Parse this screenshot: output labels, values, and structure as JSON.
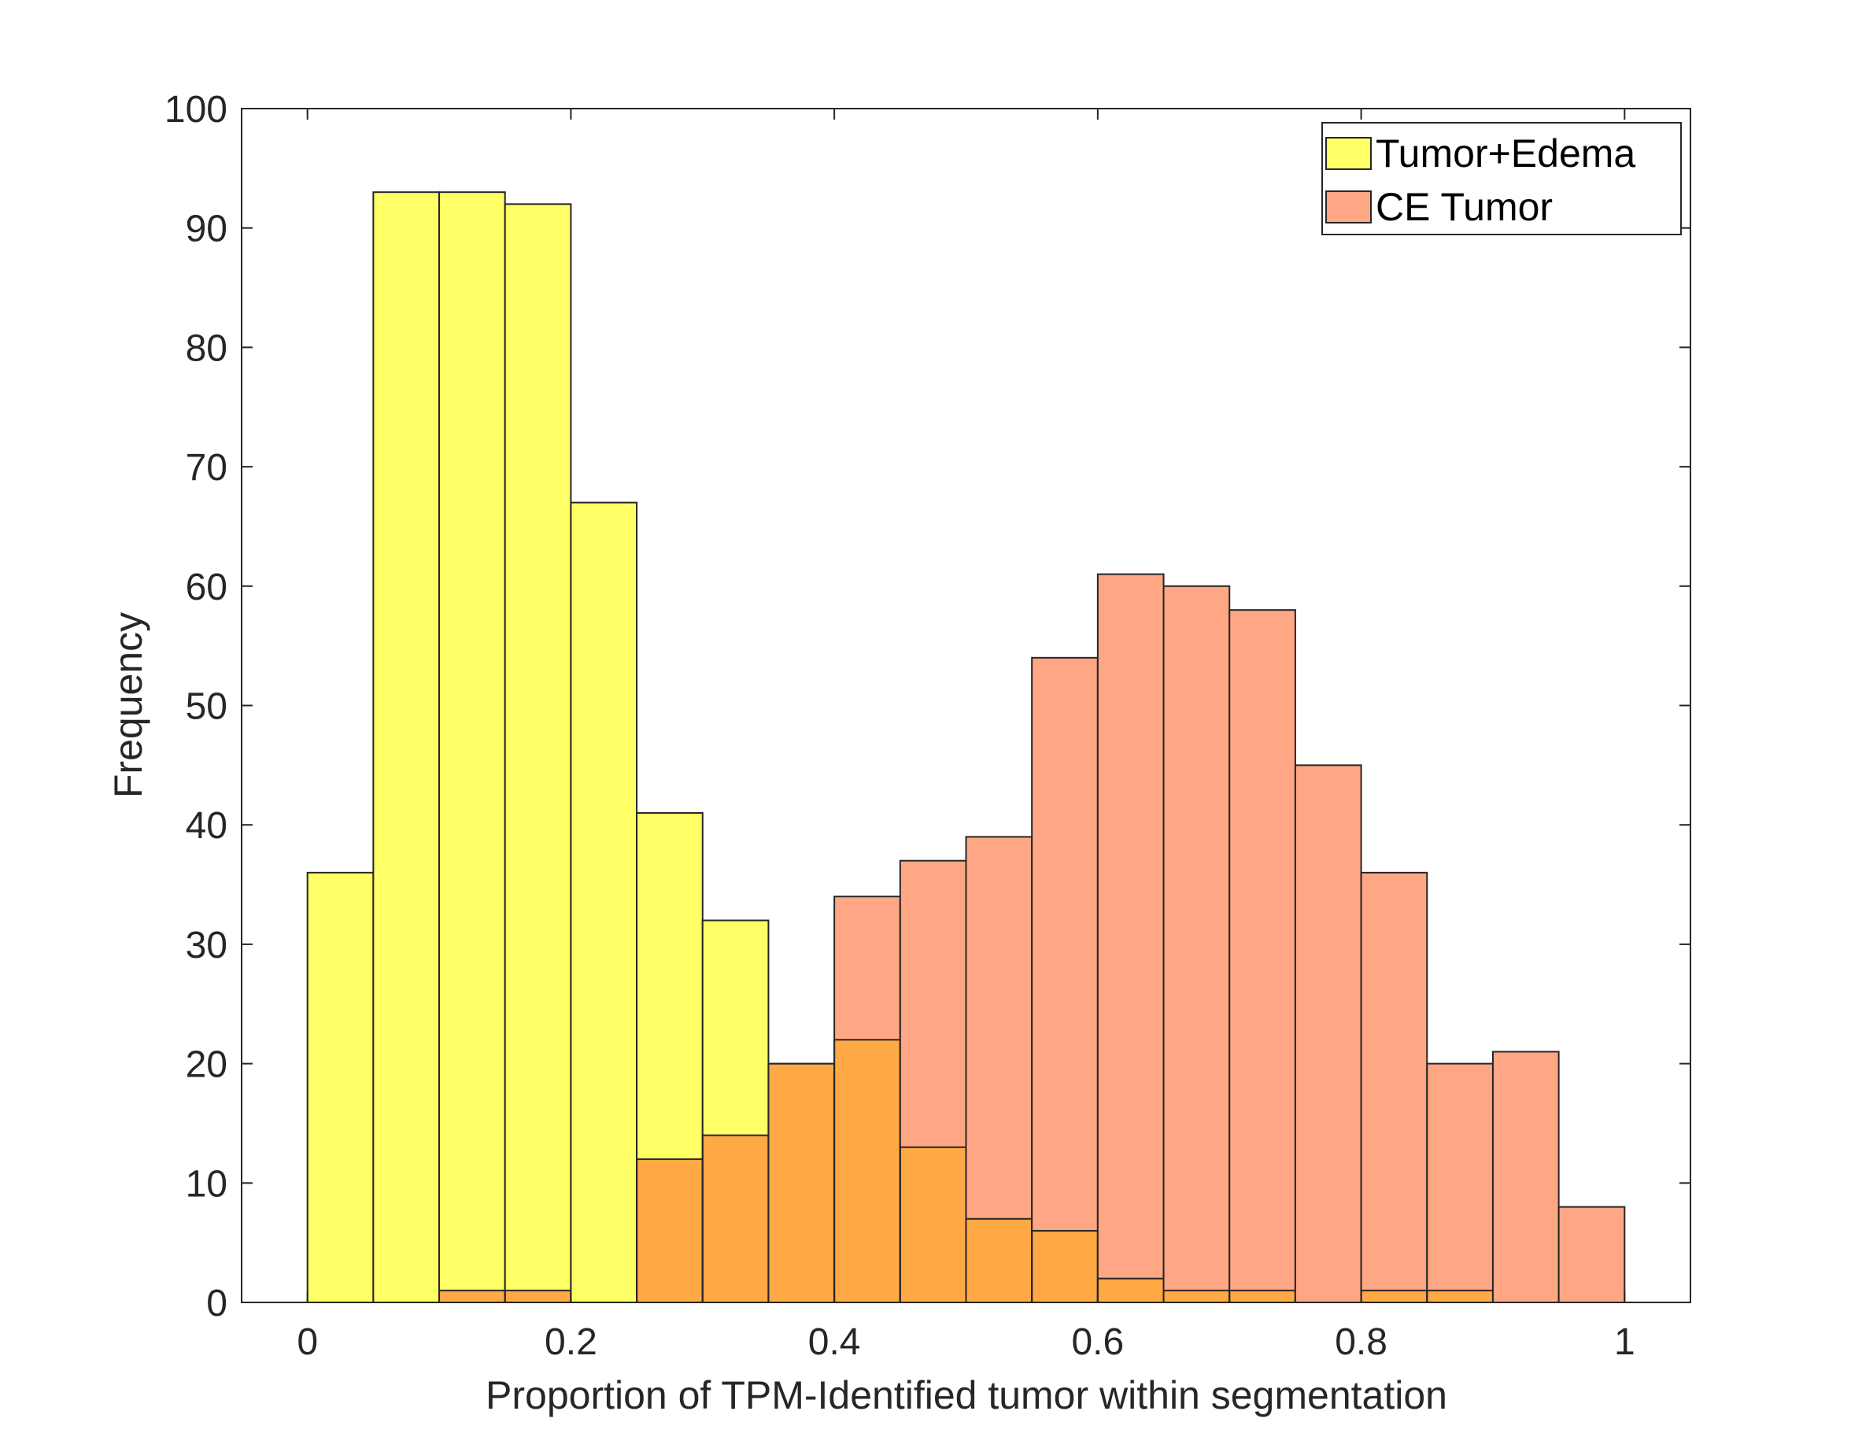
{
  "chart_data": {
    "type": "histogram",
    "title": "",
    "xlabel": "Proportion of TPM-Identified tumor within segmentation",
    "ylabel": "Frequency",
    "xlim": [
      -0.05,
      1.05
    ],
    "ylim": [
      0,
      100
    ],
    "bin_width": 0.05,
    "bin_edges": [
      0,
      0.05,
      0.1,
      0.15,
      0.2,
      0.25,
      0.3,
      0.35,
      0.4,
      0.45,
      0.5,
      0.55,
      0.6,
      0.65,
      0.7,
      0.75,
      0.8,
      0.85,
      0.9,
      0.95,
      1.0
    ],
    "x_ticks": [
      0,
      0.2,
      0.4,
      0.6,
      0.8,
      1
    ],
    "x_tick_labels": [
      "0",
      "0.2",
      "0.4",
      "0.6",
      "0.8",
      "1"
    ],
    "y_ticks": [
      0,
      10,
      20,
      30,
      40,
      50,
      60,
      70,
      80,
      90,
      100
    ],
    "y_tick_labels": [
      "0",
      "10",
      "20",
      "30",
      "40",
      "50",
      "60",
      "70",
      "80",
      "90",
      "100"
    ],
    "legend_position": "top-right",
    "series": [
      {
        "name": "Tumor+Edema",
        "color": "#ffff66",
        "values": [
          36,
          93,
          93,
          92,
          67,
          41,
          32,
          20,
          22,
          13,
          7,
          6,
          2,
          1,
          1,
          0,
          1,
          1,
          0,
          0
        ]
      },
      {
        "name": "CE Tumor",
        "color": "#ffa684",
        "values": [
          0,
          0,
          1,
          1,
          0,
          12,
          14,
          20,
          34,
          37,
          39,
          54,
          61,
          60,
          58,
          45,
          36,
          20,
          21,
          8
        ]
      }
    ],
    "overlap_color": "#ffa945"
  }
}
